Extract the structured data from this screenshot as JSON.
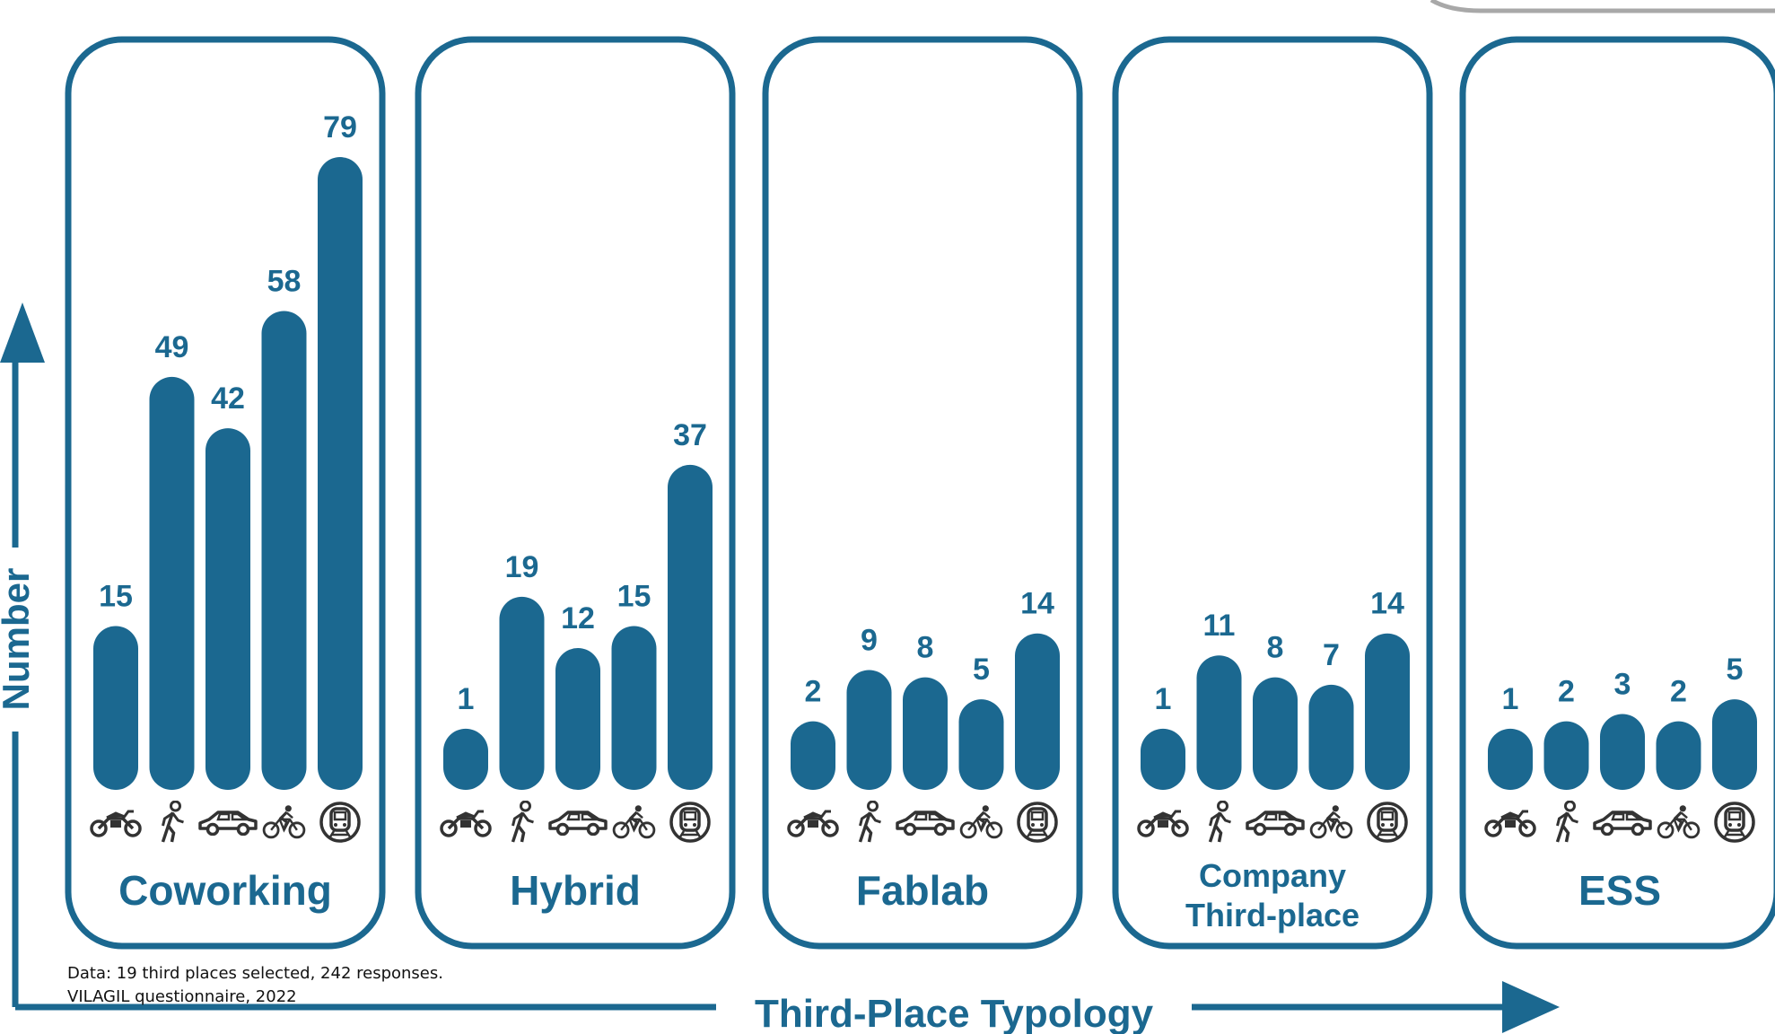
{
  "colors": {
    "primary": "#1b6890",
    "icon": "#333333"
  },
  "source_note": {
    "line1": "Data: 19 third places selected, 242 responses.",
    "line2": "VILAGIL questionnaire, 2022"
  },
  "chart_data": {
    "type": "bar",
    "title": "",
    "xlabel": "Third-Place Typology",
    "ylabel": "Number",
    "categories": [
      "motorcycle",
      "walking",
      "car",
      "bicycle",
      "train"
    ],
    "category_icons": [
      "motorcycle-icon",
      "walking-icon",
      "car-icon",
      "bicycle-icon",
      "train-icon"
    ],
    "ylim": [
      0,
      79
    ],
    "groups": [
      {
        "name": "Coworking",
        "values": [
          15,
          49,
          42,
          58,
          79
        ]
      },
      {
        "name": "Hybrid",
        "values": [
          1,
          19,
          12,
          15,
          37
        ]
      },
      {
        "name": "Fablab",
        "values": [
          2,
          9,
          8,
          5,
          14
        ]
      },
      {
        "name": "Company\nThird-place",
        "values": [
          1,
          11,
          8,
          7,
          14
        ]
      },
      {
        "name": "ESS",
        "values": [
          1,
          2,
          3,
          2,
          5
        ]
      }
    ]
  }
}
